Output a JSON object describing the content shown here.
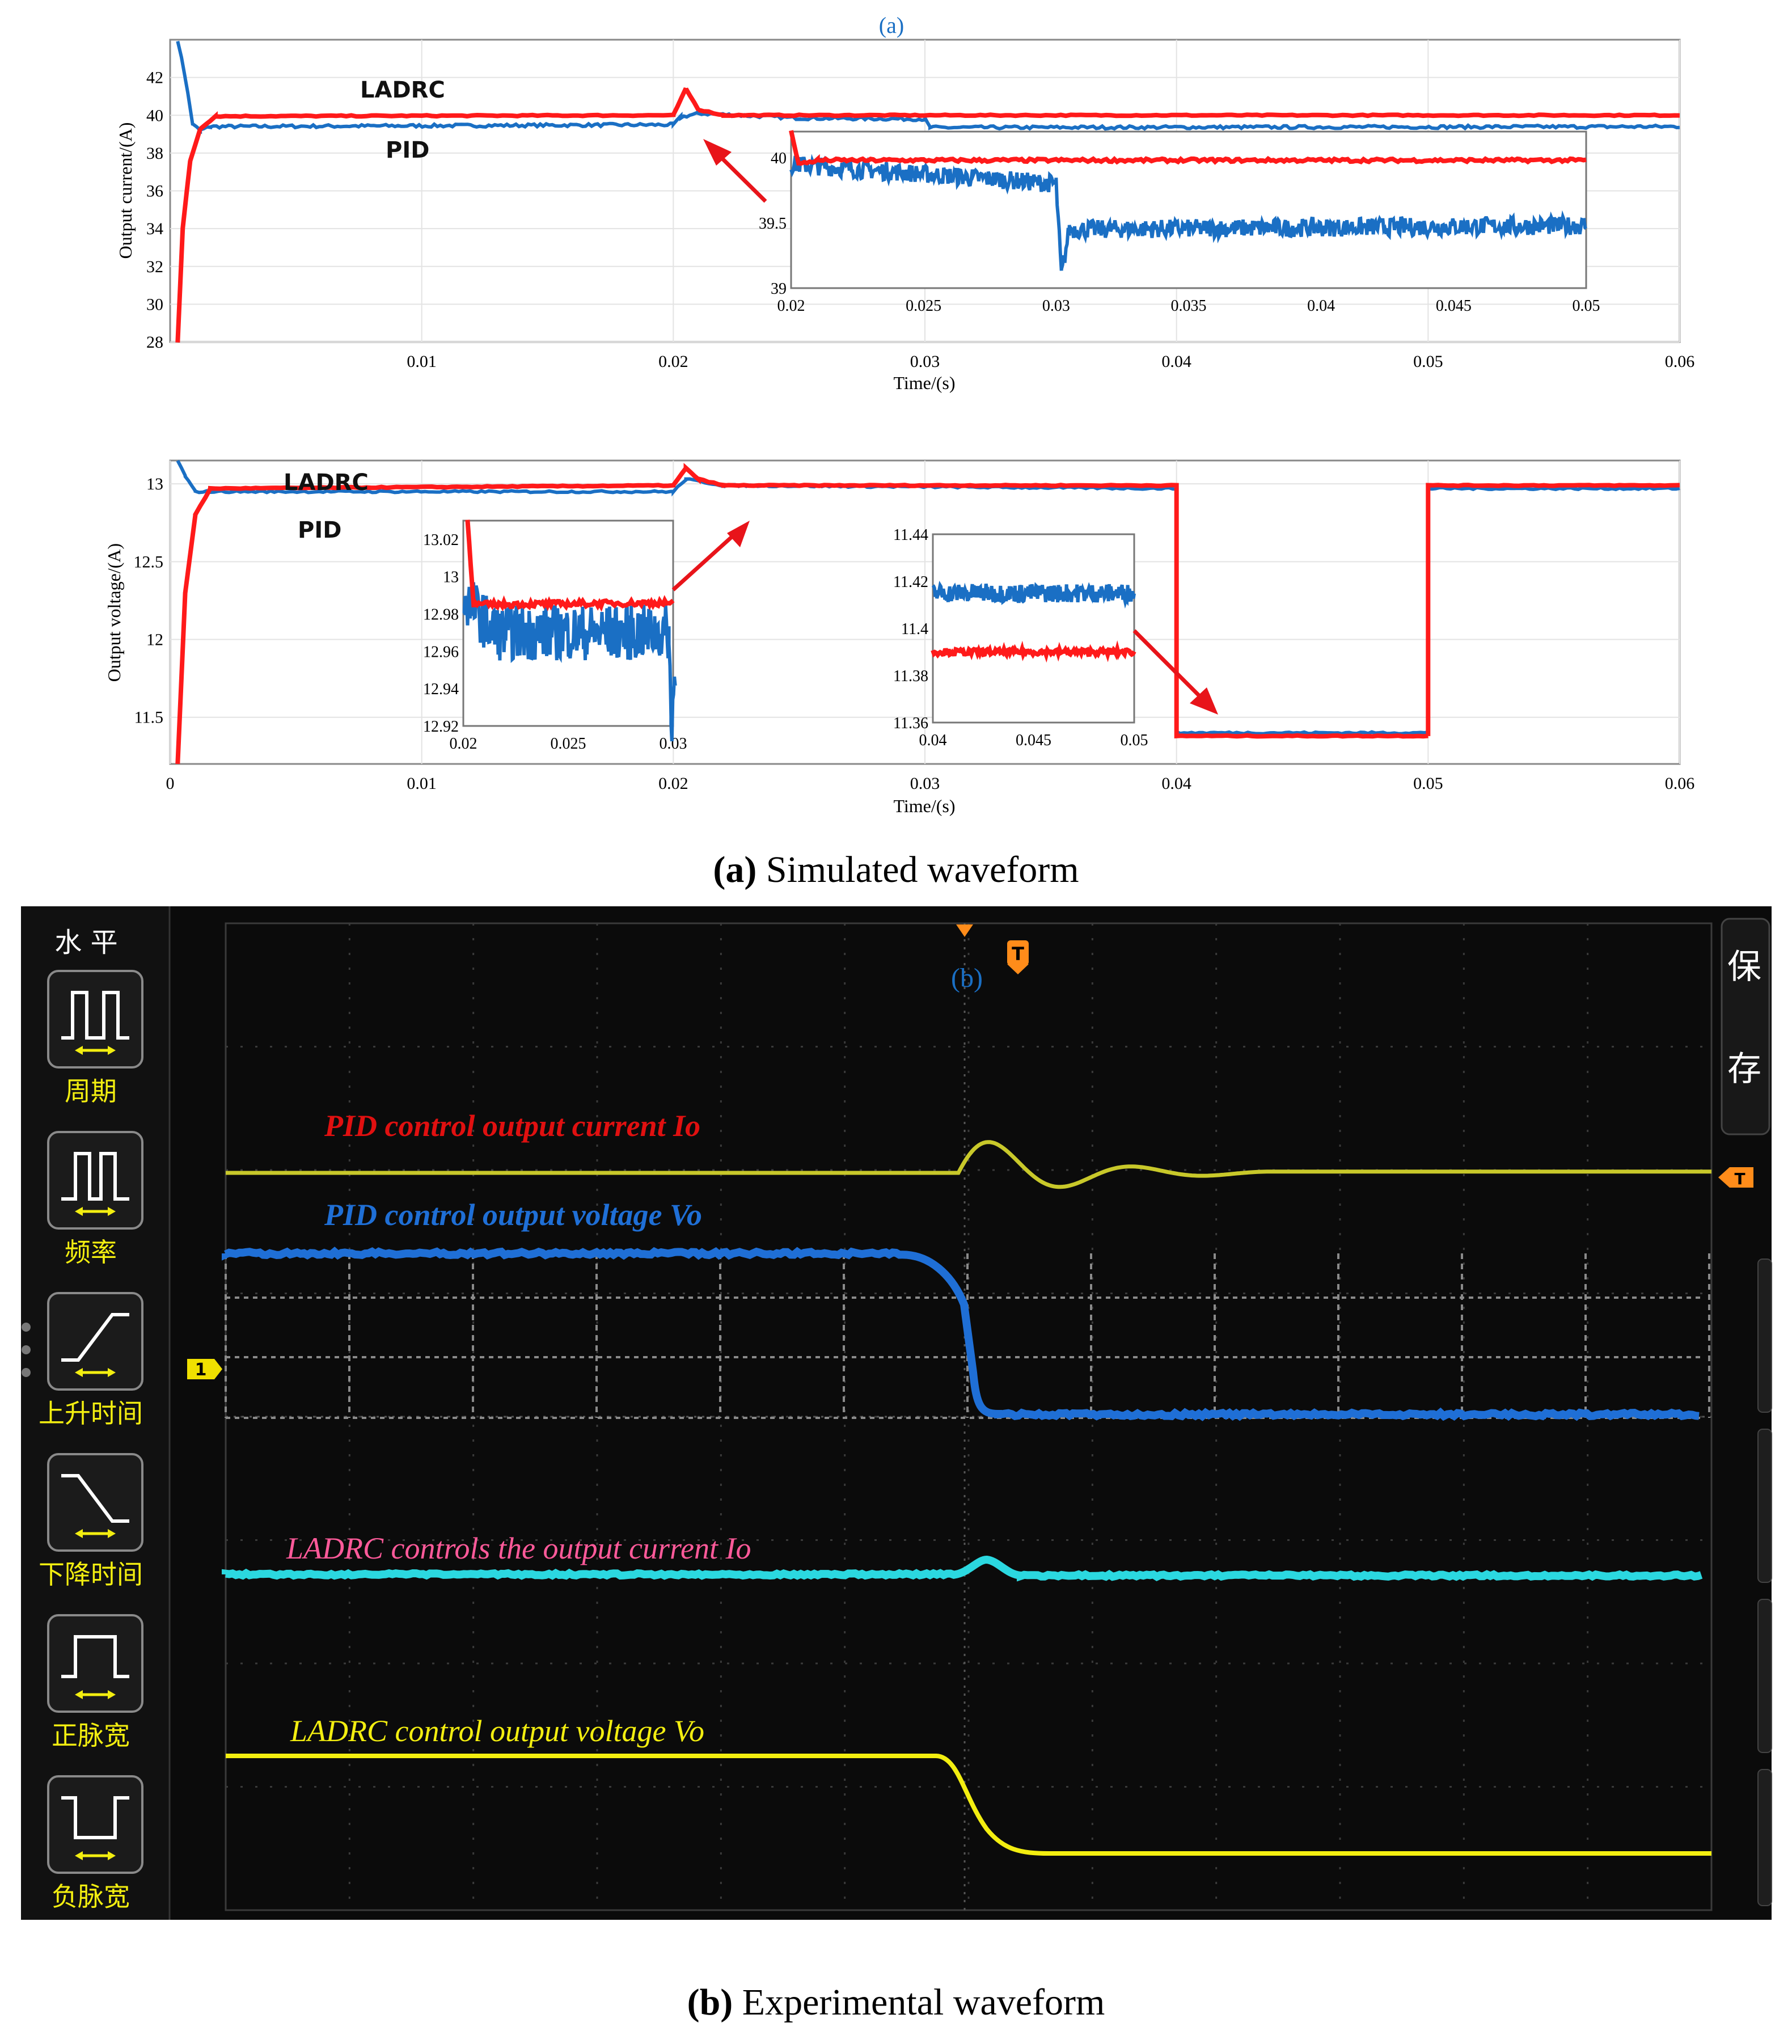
{
  "chart_data": [
    {
      "type": "line",
      "panel_tag": "(a)",
      "ylabel": "Output current/(A)",
      "xlabel": "Time/(s)",
      "xlim": [
        0,
        0.06
      ],
      "ylim": [
        28,
        44
      ],
      "xticks": [
        "0.01",
        "0.02",
        "0.03",
        "0.04",
        "0.05",
        "0.06"
      ],
      "yticks": [
        "28",
        "30",
        "32",
        "34",
        "36",
        "38",
        "40",
        "42"
      ],
      "series": [
        {
          "name": "LADRC",
          "color": "#ff1a1a",
          "points": [
            [
              0.0003,
              28
            ],
            [
              0.0005,
              34
            ],
            [
              0.0008,
              37.6
            ],
            [
              0.0012,
              39.3
            ],
            [
              0.0018,
              39.95
            ],
            [
              0.02,
              40.0
            ],
            [
              0.0205,
              41.4
            ],
            [
              0.021,
              40.3
            ],
            [
              0.022,
              40.0
            ],
            [
              0.06,
              40.0
            ]
          ]
        },
        {
          "name": "PID",
          "color": "#1a6fc4",
          "points": [
            [
              0.0003,
              44
            ],
            [
              0.0006,
              42
            ],
            [
              0.0009,
              39.5
            ],
            [
              0.0012,
              39.2
            ],
            [
              0.0016,
              39.4
            ],
            [
              0.02,
              39.5
            ],
            [
              0.0203,
              39.9
            ],
            [
              0.021,
              40.1
            ],
            [
              0.025,
              39.85
            ],
            [
              0.03,
              39.8
            ],
            [
              0.0302,
              39.35
            ],
            [
              0.06,
              39.4
            ]
          ]
        }
      ],
      "inset": {
        "xlim": [
          0.02,
          0.05
        ],
        "ylim": [
          39,
          40.2
        ],
        "xticks": [
          "0.02",
          "0.025",
          "0.03",
          "0.035",
          "0.04",
          "0.045",
          "0.05"
        ],
        "yticks": [
          "39",
          "39.5",
          "40"
        ],
        "series": [
          {
            "name": "LADRC",
            "points": [
              [
                0.02,
                40.2
              ],
              [
                0.0203,
                39.95
              ],
              [
                0.021,
                39.98
              ],
              [
                0.05,
                39.98
              ]
            ]
          },
          {
            "name": "PID",
            "points": [
              [
                0.02,
                39.95
              ],
              [
                0.03,
                39.8
              ],
              [
                0.0302,
                39.1
              ],
              [
                0.0305,
                39.45
              ],
              [
                0.05,
                39.48
              ]
            ]
          }
        ]
      }
    },
    {
      "type": "line",
      "ylabel": "Output voltage/(A)",
      "xlabel": "Time/(s)",
      "xlim": [
        0,
        0.06
      ],
      "ylim": [
        11.2,
        13.15
      ],
      "xticks": [
        "0",
        "0.01",
        "0.02",
        "0.03",
        "0.04",
        "0.05",
        "0.06"
      ],
      "yticks": [
        "11.5",
        "12",
        "12.5",
        "13"
      ],
      "series": [
        {
          "name": "LADRC",
          "color": "#ff1a1a",
          "points": [
            [
              0.0003,
              11.2
            ],
            [
              0.0006,
              12.3
            ],
            [
              0.001,
              12.8
            ],
            [
              0.0016,
              12.97
            ],
            [
              0.02,
              12.99
            ],
            [
              0.0205,
              13.1
            ],
            [
              0.021,
              13.03
            ],
            [
              0.022,
              12.99
            ],
            [
              0.04,
              12.99
            ],
            [
              0.04,
              11.38
            ],
            [
              0.05,
              11.38
            ],
            [
              0.05,
              12.99
            ],
            [
              0.06,
              12.99
            ]
          ]
        },
        {
          "name": "PID",
          "color": "#1a6fc4",
          "points": [
            [
              0.0003,
              13.15
            ],
            [
              0.0006,
              13.05
            ],
            [
              0.001,
              12.95
            ],
            [
              0.02,
              12.95
            ],
            [
              0.0205,
              13.03
            ],
            [
              0.022,
              12.99
            ],
            [
              0.04,
              12.97
            ],
            [
              0.04,
              11.4
            ],
            [
              0.05,
              11.4
            ],
            [
              0.05,
              12.97
            ],
            [
              0.06,
              12.97
            ]
          ]
        }
      ],
      "insets": [
        {
          "xlim": [
            0.02,
            0.03
          ],
          "ylim": [
            12.92,
            13.03
          ],
          "xticks": [
            "0.02",
            "0.025",
            "0.03"
          ],
          "yticks": [
            "12.92",
            "12.94",
            "12.96",
            "12.98",
            "13",
            "13.02"
          ]
        },
        {
          "xlim": [
            0.04,
            0.05
          ],
          "ylim": [
            11.36,
            11.44
          ],
          "xticks": [
            "0.04",
            "0.045",
            "0.05"
          ],
          "yticks": [
            "11.36",
            "11.38",
            "11.4",
            "11.42",
            "11.44"
          ]
        }
      ]
    },
    {
      "type": "line",
      "panel_tag": "(b)",
      "annotations": [
        "PID control output current Io",
        "PID control output voltage Vo",
        "LADRC controls the output current Io",
        "LADRC control  output  voltage  Vo"
      ]
    }
  ],
  "captions": {
    "a_letter": "(a)",
    "a_text": " Simulated waveform",
    "b_letter": "(b)",
    "b_text": " Experimental waveform"
  },
  "scope": {
    "menu_title": "水 平",
    "menu_items": [
      "周期",
      "频率",
      "上升时间",
      "下降时间",
      "正脉宽",
      "负脉宽"
    ],
    "right_menu": [
      "保",
      "存"
    ],
    "channel_marker": "1",
    "trigger_marker": "T"
  }
}
